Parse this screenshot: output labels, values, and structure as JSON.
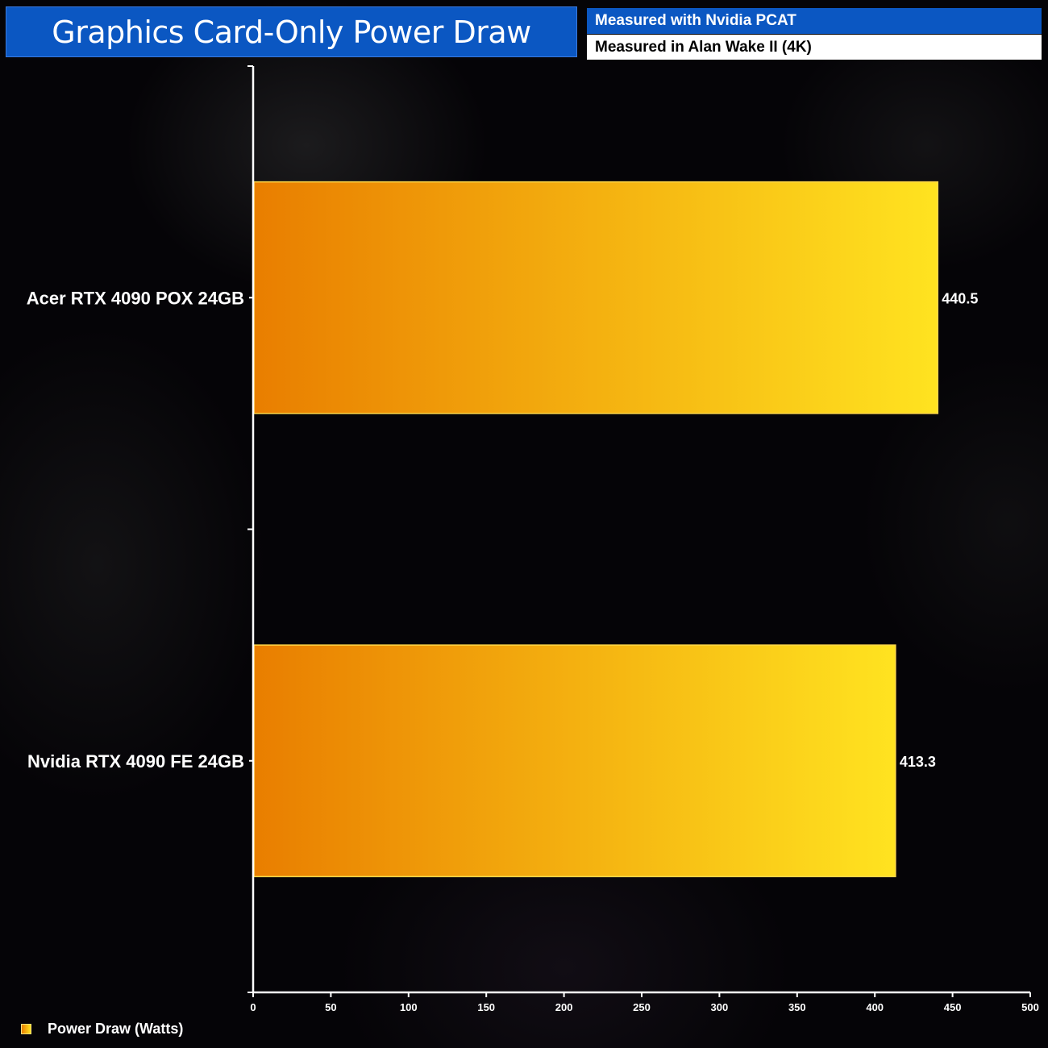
{
  "header": {
    "title": "Graphics Card-Only Power Draw",
    "subtitle_1": "Measured with Nvidia PCAT",
    "subtitle_2": "Measured in Alan Wake II (4K)"
  },
  "colors": {
    "title_bg": "#0b57c2",
    "bar_start": "#e97e00",
    "bar_end": "#ffe320",
    "bar_border": "#ffd84a",
    "axis": "#ffffff",
    "text": "#ffffff"
  },
  "chart_data": {
    "type": "bar",
    "orientation": "horizontal",
    "title": "Graphics Card-Only Power Draw",
    "categories": [
      "Acer RTX 4090 POX 24GB",
      "Nvidia RTX 4090 FE 24GB"
    ],
    "series": [
      {
        "name": "Power Draw (Watts)",
        "values": [
          440.5,
          413.3
        ]
      }
    ],
    "data_labels": [
      "440.5",
      "413.3"
    ],
    "xlim": [
      0,
      500
    ],
    "x_ticks": [
      0,
      50,
      100,
      150,
      200,
      250,
      300,
      350,
      400,
      450,
      500
    ],
    "grid": false,
    "legend": "bottom-left"
  }
}
